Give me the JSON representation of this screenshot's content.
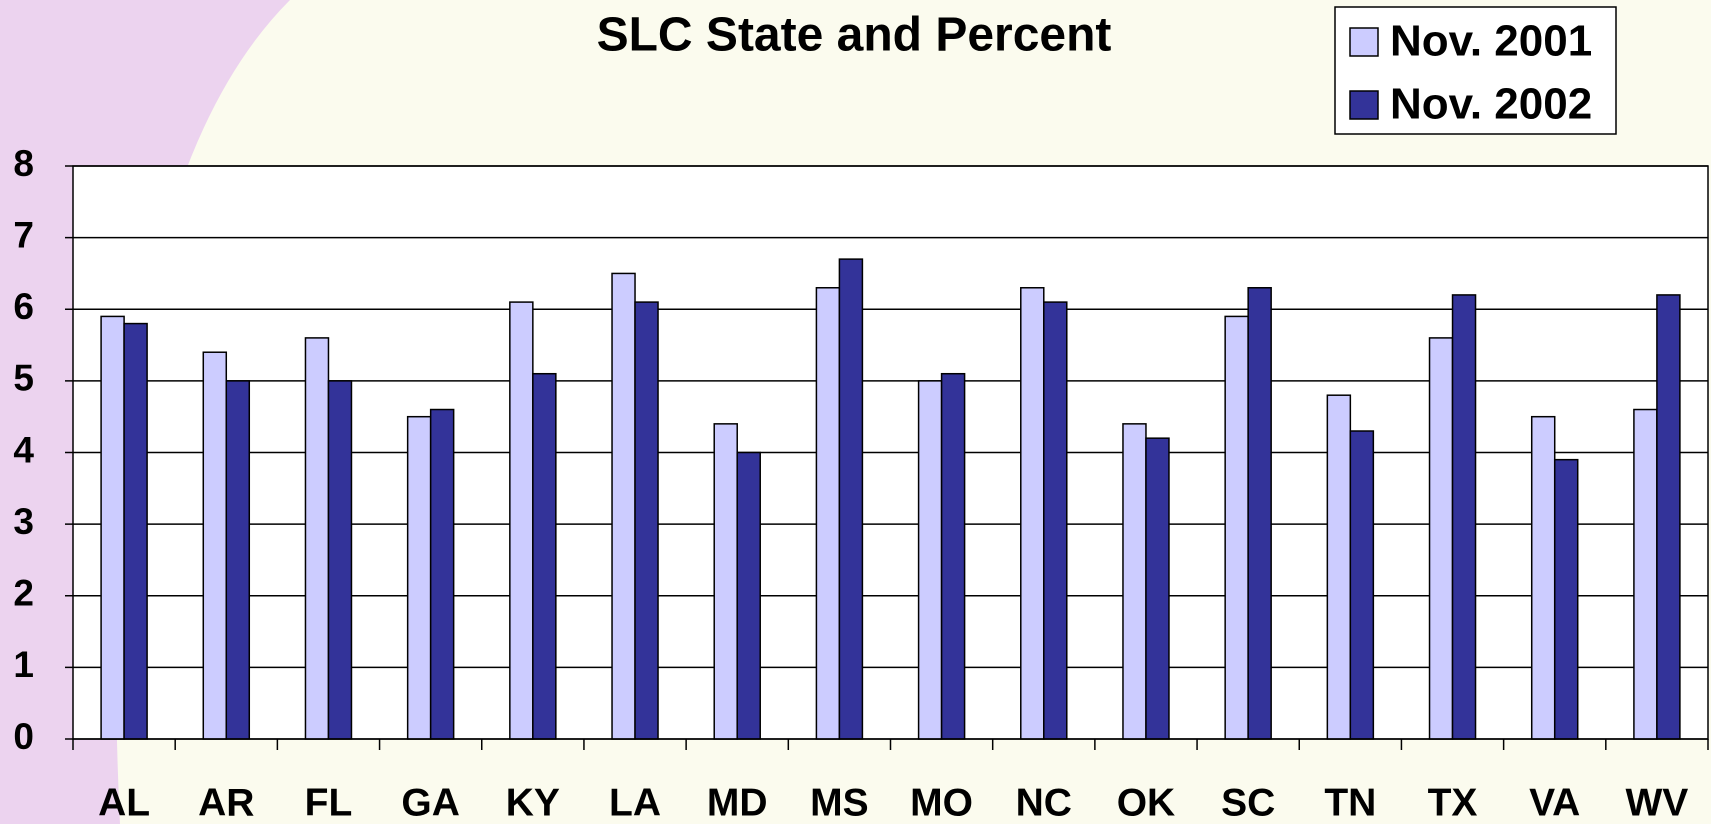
{
  "chart_data": {
    "type": "bar",
    "title": "SLC State and Percent",
    "categories": [
      "AL",
      "AR",
      "FL",
      "GA",
      "KY",
      "LA",
      "MD",
      "MS",
      "MO",
      "NC",
      "OK",
      "SC",
      "TN",
      "TX",
      "VA",
      "WV"
    ],
    "series": [
      {
        "name": "Nov. 2001",
        "color": "#ccccff",
        "values": [
          5.9,
          5.4,
          5.6,
          4.5,
          6.1,
          6.5,
          4.4,
          6.3,
          5.0,
          6.3,
          4.4,
          5.9,
          4.8,
          5.6,
          4.5,
          4.6
        ]
      },
      {
        "name": "Nov. 2002",
        "color": "#333399",
        "values": [
          5.8,
          5.0,
          5.0,
          4.6,
          5.1,
          6.1,
          4.0,
          6.7,
          5.1,
          6.1,
          4.2,
          6.3,
          4.3,
          6.2,
          3.9,
          6.2
        ]
      }
    ],
    "ylim": [
      0,
      8
    ],
    "yticks": [
      0,
      1,
      2,
      3,
      4,
      5,
      6,
      7,
      8
    ],
    "grid": true,
    "legend": "top-right"
  }
}
